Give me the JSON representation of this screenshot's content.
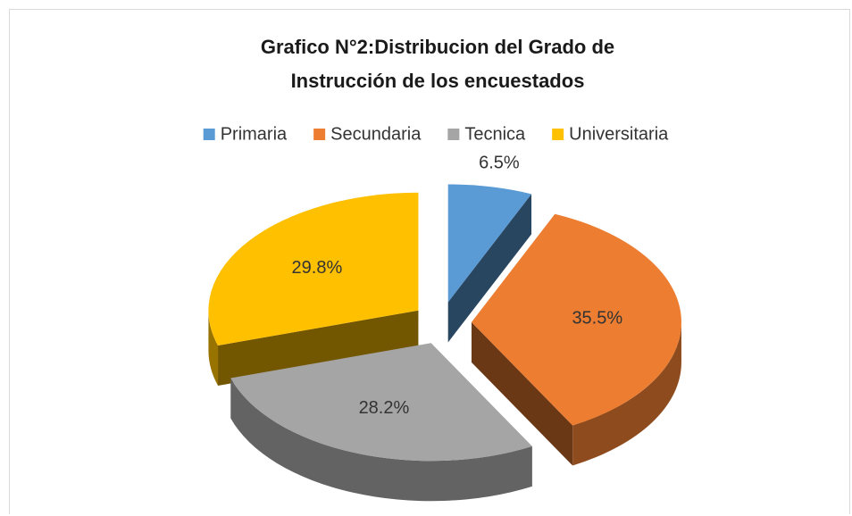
{
  "chart_data": {
    "type": "pie",
    "title": "Grafico N°2:Distribucion del Grado de Instrucción de los encuestados",
    "categories": [
      "Primaria",
      "Secundaria",
      "Tecnica",
      "Universitaria"
    ],
    "values": [
      6.5,
      35.5,
      28.2,
      29.8
    ],
    "value_labels": [
      "6.5%",
      "35.5%",
      "28.2%",
      "29.8%"
    ],
    "colors": [
      "#5b9bd5",
      "#ed7d31",
      "#a5a5a5",
      "#ffc000"
    ],
    "legend": "top"
  }
}
